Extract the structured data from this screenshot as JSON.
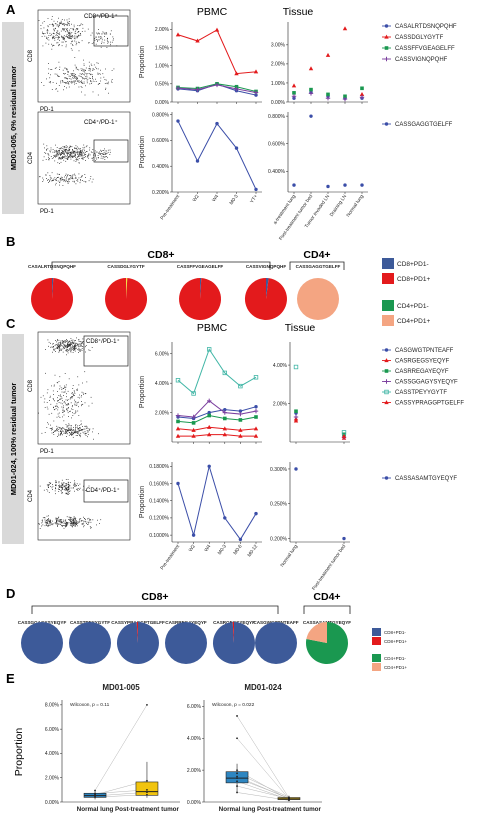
{
  "panel_letters": [
    "A",
    "B",
    "C",
    "D",
    "E"
  ],
  "side_labels": {
    "a": "MD01-005, 0% residual tumor",
    "c": "MD01-024, 100% residual tumor"
  },
  "flow": {
    "gate_cd8": "CD8⁺/PD-1⁺",
    "gate_cd4": "CD4⁺/PD-1⁺",
    "axis_cd8": "CD8",
    "axis_cd4": "CD4",
    "axis_pd1": "PD-1"
  },
  "headers": {
    "pbmc": "PBMC",
    "tissue": "Tissue",
    "cd8": "CD8+",
    "cd4": "CD4+",
    "proportion": "Proportion"
  },
  "colors": {
    "blue": "#3b4ea8",
    "red": "#e31a1c",
    "green": "#1a9850",
    "purple": "#7b3f9e",
    "teal": "#41b6a6",
    "salmon": "#f4a582",
    "pie_blue": "#3d5a99"
  },
  "chart_data": [
    {
      "id": "A_pbmc_cd8",
      "type": "line",
      "categories": [
        "Pre-treatment",
        "W2",
        "W4",
        "M0-3",
        "YT+"
      ],
      "ylim": [
        0,
        0.022
      ],
      "yticks": [
        "0.00%",
        "0.50%",
        "1.00%",
        "1.50%",
        "2.00%"
      ],
      "ylabel": "Proportion",
      "series": [
        {
          "name": "CASALRTDSNQPQHF",
          "color": "#3b4ea8",
          "values": [
            0.0036,
            0.0031,
            0.0049,
            0.0031,
            0.0019
          ]
        },
        {
          "name": "CASSDGLYGYTF",
          "color": "#e31a1c",
          "values": [
            0.0185,
            0.0168,
            0.0198,
            0.0078,
            0.0083
          ]
        },
        {
          "name": "CASSFFVGEAGELFF",
          "color": "#1a9850",
          "values": [
            0.004,
            0.0037,
            0.005,
            0.0042,
            0.0029
          ]
        },
        {
          "name": "CASSVIGNQPQHF",
          "color": "#7b3f9e",
          "values": [
            0.0038,
            0.0034,
            0.0047,
            0.0036,
            0.0026
          ]
        }
      ]
    },
    {
      "id": "A_pbmc_cd4",
      "type": "line",
      "categories": [
        "Pre-treatment",
        "W2",
        "W4",
        "M0-3",
        "YT+"
      ],
      "ylim": [
        0.002,
        0.0082
      ],
      "yticks": [
        "0.200%",
        "0.400%",
        "0.600%",
        "0.800%"
      ],
      "ylabel": "Proportion",
      "series": [
        {
          "name": "CASSGAGGTGELFF",
          "color": "#3b4ea8",
          "values": [
            0.0075,
            0.0044,
            0.0073,
            0.0054,
            0.0022
          ]
        }
      ]
    },
    {
      "id": "A_tissue_cd8",
      "type": "scatter",
      "categories": [
        "a-treatment lung",
        "Post-treatment tumor bed",
        "Tumor invaded LN",
        "Draining LN",
        "Normal lung"
      ],
      "ylim": [
        0,
        0.042
      ],
      "yticks": [
        "0.00%",
        "1.00%",
        "2.00%",
        "3.00%"
      ],
      "series": [
        {
          "name": "CASALRTDSNQPQHF",
          "color": "#3b4ea8",
          "values": [
            0.002,
            0.005,
            0.003,
            0.002,
            0.002
          ]
        },
        {
          "name": "CASSDGLYGYTF",
          "color": "#e31a1c",
          "values": [
            0.0085,
            0.0175,
            0.0245,
            0.0385,
            0.004
          ]
        },
        {
          "name": "CASSFFVGEAGELFF",
          "color": "#1a9850",
          "values": [
            0.0048,
            0.0065,
            0.004,
            0.003,
            0.0072
          ]
        },
        {
          "name": "CASSVIGNQPQHF",
          "color": "#7b3f9e",
          "values": [
            0.003,
            0.0045,
            0.002,
            0.0015,
            0.0025
          ]
        }
      ]
    },
    {
      "id": "A_tissue_cd4",
      "type": "scatter",
      "categories": [
        "a-treatment lung",
        "Post-treatment tumor bed",
        "Tumor invaded LN",
        "Draining LN",
        "Normal lung"
      ],
      "ylim": [
        0.0025,
        0.0083
      ],
      "yticks": [
        "0.400%",
        "0.600%",
        "0.800%"
      ],
      "series": [
        {
          "name": "CASSGAGGTGELFF",
          "color": "#3b4ea8",
          "values": [
            0.003,
            0.008,
            0.0029,
            0.003,
            0.003
          ]
        }
      ]
    },
    {
      "id": "B_pies",
      "type": "pie",
      "groups": [
        {
          "label": "CASALRTDSNQPQHF",
          "slices": [
            {
              "name": "CD8+PD1-",
              "value": 0.01,
              "color": "#3d5a99"
            },
            {
              "name": "CD8+PD1+",
              "value": 0.99,
              "color": "#e31a1c"
            }
          ]
        },
        {
          "label": "CASSDGLYGYTF",
          "slices": [
            {
              "name": "CD8+PD1-",
              "value": 0.01,
              "color": "#f0e442"
            },
            {
              "name": "CD8+PD1+",
              "value": 0.99,
              "color": "#e31a1c"
            }
          ]
        },
        {
          "label": "CASSFFVGEAGELFF",
          "slices": [
            {
              "name": "CD8+PD1-",
              "value": 0.01,
              "color": "#3d5a99"
            },
            {
              "name": "CD8+PD1+",
              "value": 0.99,
              "color": "#e31a1c"
            }
          ]
        },
        {
          "label": "CASSVIGNQPQHF",
          "slices": [
            {
              "name": "CD8+PD1-",
              "value": 0.02,
              "color": "#3d5a99"
            },
            {
              "name": "CD8+PD1+",
              "value": 0.98,
              "color": "#e31a1c"
            }
          ]
        },
        {
          "label": "CASSGAGGTGELFF",
          "slices": [
            {
              "name": "CD4+PD1+",
              "value": 1.0,
              "color": "#f4a582"
            }
          ]
        }
      ],
      "legend": [
        {
          "name": "CD8+PD1-",
          "color": "#3d5a99"
        },
        {
          "name": "CD8+PD1+",
          "color": "#e31a1c"
        },
        {
          "name": "CD4+PD1-",
          "color": "#1a9850"
        },
        {
          "name": "CD4+PD1+",
          "color": "#f4a582"
        }
      ]
    },
    {
      "id": "C_pbmc_cd8",
      "type": "line",
      "categories": [
        "Pre-treatment",
        "W2",
        "W4",
        "M0-3",
        "M0-6",
        "M0-12"
      ],
      "ylim": [
        0,
        0.068
      ],
      "yticks": [
        "2.00%",
        "4.00%",
        "6.00%"
      ],
      "ylabel": "Proportion",
      "series": [
        {
          "name": "CASGWGTPNTEAFF",
          "color": "#3b4ea8",
          "values": [
            0.017,
            0.016,
            0.02,
            0.022,
            0.021,
            0.024
          ]
        },
        {
          "name": "CASRGEGSYEQYF",
          "color": "#e31a1c",
          "values": [
            0.009,
            0.008,
            0.01,
            0.009,
            0.008,
            0.009
          ]
        },
        {
          "name": "CASRREGAYEQYF",
          "color": "#1a9850",
          "values": [
            0.014,
            0.013,
            0.018,
            0.016,
            0.015,
            0.017
          ]
        },
        {
          "name": "CASSGGAGYSYEQYF",
          "color": "#7b3f9e",
          "values": [
            0.018,
            0.017,
            0.028,
            0.02,
            0.019,
            0.021
          ]
        },
        {
          "name": "CASSTPEYYGYTF",
          "color": "#41b6a6",
          "values": [
            0.042,
            0.033,
            0.063,
            0.047,
            0.038,
            0.044
          ]
        },
        {
          "name": "CASSYPRAGGPTGELFF",
          "color": "#e31a1c",
          "values": [
            0.004,
            0.004,
            0.005,
            0.005,
            0.004,
            0.004
          ]
        }
      ]
    },
    {
      "id": "C_pbmc_cd4",
      "type": "line",
      "categories": [
        "Pre-treatment",
        "W2",
        "W4",
        "M0-3",
        "M0-6",
        "M0-12"
      ],
      "ylim": [
        0.00092,
        0.00185
      ],
      "yticks": [
        "0.1000%",
        "0.1200%",
        "0.1400%",
        "0.1600%",
        "0.1800%"
      ],
      "ylabel": "Proportion",
      "series": [
        {
          "name": "CASSASAMTGYEQYF",
          "color": "#3b4ea8",
          "values": [
            0.0016,
            0.001,
            0.0018,
            0.0012,
            0.00095,
            0.00125
          ]
        }
      ]
    },
    {
      "id": "C_tissue_cd8",
      "type": "scatter",
      "categories": [
        "Normal lung",
        "Post-treatment tumor bed"
      ],
      "ylim": [
        0,
        0.052
      ],
      "yticks": [
        "2.00%",
        "4.00%"
      ],
      "series": [
        {
          "name": "CASGWGTPNTEAFF",
          "color": "#3b4ea8",
          "values": [
            0.015,
            0.003
          ]
        },
        {
          "name": "CASRGEGSYEQYF",
          "color": "#e31a1c",
          "values": [
            0.012,
            0.002
          ]
        },
        {
          "name": "CASRREGAYEQYF",
          "color": "#1a9850",
          "values": [
            0.016,
            0.004
          ]
        },
        {
          "name": "CASSGGAGYSYEQYF",
          "color": "#7b3f9e",
          "values": [
            0.013,
            0.0025
          ]
        },
        {
          "name": "CASSTPEYYGYTF",
          "color": "#41b6a6",
          "values": [
            0.039,
            0.005
          ]
        },
        {
          "name": "CASSYPRAGGPTGELFF",
          "color": "#e31a1c",
          "values": [
            0.011,
            0.003
          ]
        }
      ]
    },
    {
      "id": "C_tissue_cd4",
      "type": "scatter",
      "categories": [
        "Normal lung",
        "Post-treatment tumor bed"
      ],
      "ylim": [
        0.00195,
        0.0031
      ],
      "yticks": [
        "0.200%",
        "0.250%",
        "0.300%"
      ],
      "series": [
        {
          "name": "CASSASAMTGYEQYF",
          "color": "#3b4ea8",
          "values": [
            0.003,
            0.002
          ]
        }
      ]
    },
    {
      "id": "D_pies",
      "type": "pie",
      "groups": [
        {
          "label": "CASSGGAGYSYEQYF",
          "slices": [
            {
              "name": "CD8+PD1-",
              "value": 1.0,
              "color": "#3d5a99"
            }
          ]
        },
        {
          "label": "CASSTPEYYGYTF",
          "slices": [
            {
              "name": "CD8+PD1-",
              "value": 1.0,
              "color": "#3d5a99"
            }
          ]
        },
        {
          "label": "CASSYPRAGGPTGELFF",
          "slices": [
            {
              "name": "CD8+PD1-",
              "value": 0.99,
              "color": "#3d5a99"
            },
            {
              "name": "CD8+PD1+",
              "value": 0.01,
              "color": "#e31a1c"
            }
          ]
        },
        {
          "label": "CASRREGAYEQYF",
          "slices": [
            {
              "name": "CD8+PD1-",
              "value": 1.0,
              "color": "#3d5a99"
            }
          ]
        },
        {
          "label": "CASRGEGSYEQYF",
          "slices": [
            {
              "name": "CD8+PD1-",
              "value": 0.99,
              "color": "#3d5a99"
            },
            {
              "name": "CD8+PD1+",
              "value": 0.01,
              "color": "#e31a1c"
            }
          ]
        },
        {
          "label": "CASGWGTPNTEAFF",
          "slices": [
            {
              "name": "CD8+PD1-",
              "value": 1.0,
              "color": "#3d5a99"
            }
          ]
        },
        {
          "label": "CASSASAMTGYEQYF",
          "slices": [
            {
              "name": "CD4+PD1-",
              "value": 0.78,
              "color": "#1a9850"
            },
            {
              "name": "CD4+PD1+",
              "value": 0.22,
              "color": "#f4a582"
            }
          ]
        }
      ],
      "legend": [
        {
          "name": "CD8+PD1-",
          "color": "#3d5a99"
        },
        {
          "name": "CD8+PD1+",
          "color": "#e31a1c"
        },
        {
          "name": "CD4+PD1-",
          "color": "#1a9850"
        },
        {
          "name": "CD4+PD1+",
          "color": "#f4a582"
        }
      ]
    },
    {
      "id": "E_md01_005",
      "type": "box",
      "title": "MD01-005",
      "annotation": "Wilcoxon, p = 0.11",
      "categories": [
        "Normal lung",
        "Post-treatment tumor"
      ],
      "ylim": [
        0,
        0.084
      ],
      "yticks": [
        "0.00%",
        "2.00%",
        "4.00%",
        "6.00%",
        "8.00%"
      ],
      "ylabel": "Proportion",
      "boxes": [
        {
          "category": "Normal lung",
          "color": "#2e86c1",
          "q1": 0.0038,
          "median": 0.0052,
          "q3": 0.0072,
          "min": 0.0022,
          "max": 0.0098
        },
        {
          "category": "Post-treatment tumor",
          "color": "#f1c40f",
          "q1": 0.0055,
          "median": 0.0085,
          "q3": 0.0165,
          "min": 0.0035,
          "max": 0.08
        }
      ],
      "pairs": [
        [
          0.004,
          0.006
        ],
        [
          0.005,
          0.008
        ],
        [
          0.006,
          0.0175
        ],
        [
          0.007,
          0.01
        ],
        [
          0.0095,
          0.08
        ]
      ]
    },
    {
      "id": "E_md01_024",
      "type": "box",
      "title": "MD01-024",
      "annotation": "Wilcoxon, p = 0.022",
      "categories": [
        "Normal lung",
        "Post-treatment tumor"
      ],
      "ylim": [
        0,
        0.064
      ],
      "yticks": [
        "0.00%",
        "2.00%",
        "4.00%",
        "6.00%"
      ],
      "boxes": [
        {
          "category": "Normal lung",
          "color": "#2e86c1",
          "q1": 0.012,
          "median": 0.015,
          "q3": 0.019,
          "min": 0.006,
          "max": 0.024
        },
        {
          "category": "Post-treatment tumor",
          "color": "#f1c40f",
          "q1": 0.0015,
          "median": 0.002,
          "q3": 0.0028,
          "min": 0.001,
          "max": 0.004
        }
      ],
      "pairs": [
        [
          0.01,
          0.002
        ],
        [
          0.013,
          0.0015
        ],
        [
          0.015,
          0.0025
        ],
        [
          0.016,
          0.002
        ],
        [
          0.018,
          0.003
        ],
        [
          0.02,
          0.0015
        ],
        [
          0.04,
          0.002
        ],
        [
          0.054,
          0.0025
        ],
        [
          0.006,
          0.001
        ]
      ]
    }
  ]
}
